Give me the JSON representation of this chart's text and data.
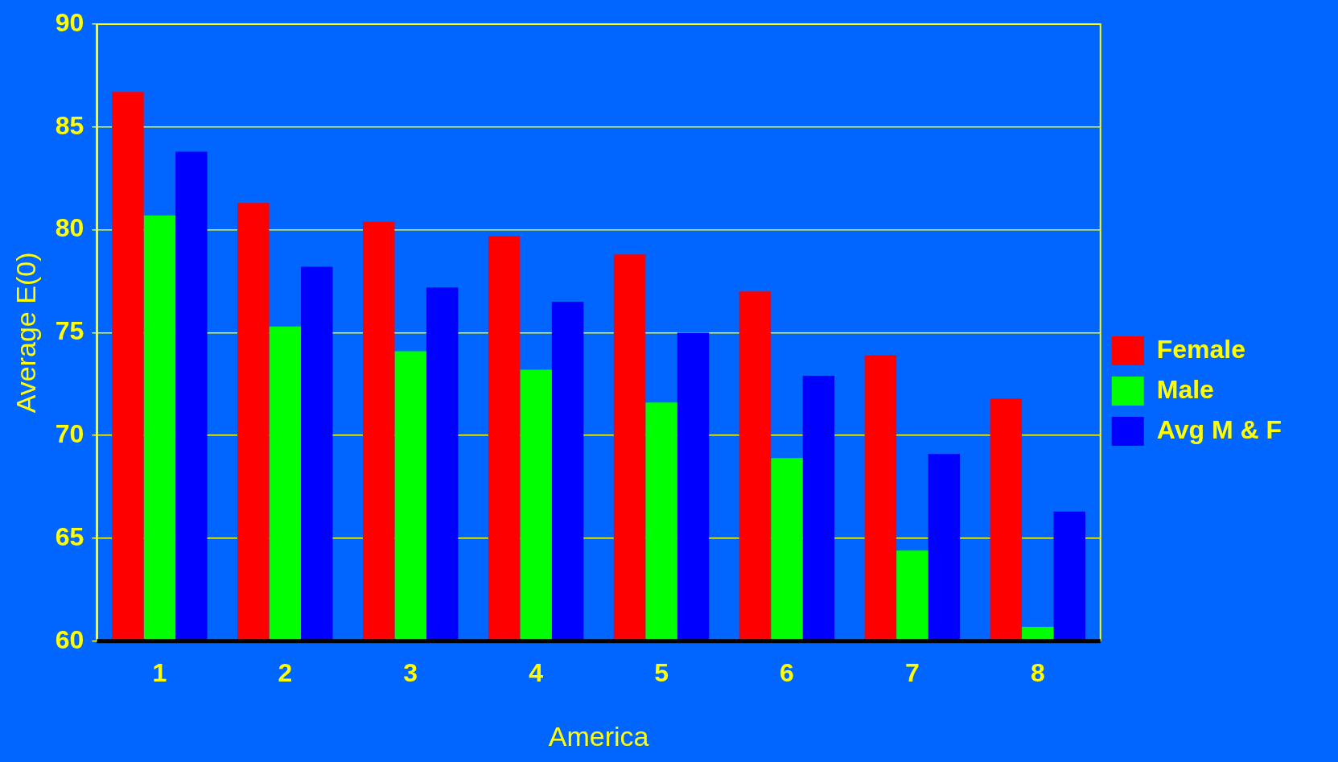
{
  "chart_data": {
    "type": "bar",
    "xlabel": "America",
    "ylabel": "Average E(0)",
    "categories": [
      "1",
      "2",
      "3",
      "4",
      "5",
      "6",
      "7",
      "8"
    ],
    "series": [
      {
        "name": "Female",
        "color": "#ff0000",
        "values": [
          86.7,
          81.3,
          80.4,
          79.7,
          78.8,
          77.0,
          73.9,
          71.8
        ]
      },
      {
        "name": "Male",
        "color": "#00ff00",
        "values": [
          80.7,
          75.3,
          74.1,
          73.2,
          71.6,
          68.9,
          64.4,
          60.7
        ]
      },
      {
        "name": "Avg M & F",
        "color": "#0000ff",
        "values": [
          83.8,
          78.2,
          77.2,
          76.5,
          75.0,
          72.9,
          69.1,
          66.3
        ]
      }
    ],
    "ylim": [
      60,
      90
    ],
    "yticks": [
      60,
      65,
      70,
      75,
      80,
      85,
      90
    ],
    "grid": "y",
    "legend": "right"
  }
}
